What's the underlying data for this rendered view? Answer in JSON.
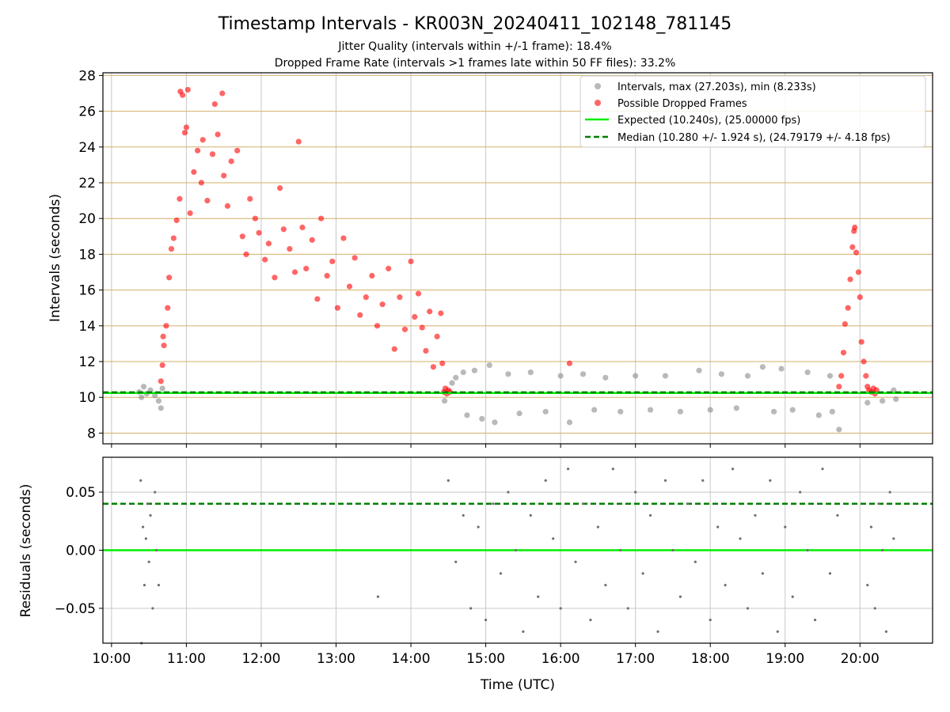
{
  "title": "Timestamp Intervals - KR003N_20240411_102148_781145",
  "subtitle_line1": "Jitter Quality (intervals within +/-1 frame): 18.4%",
  "subtitle_line2": "Dropped Frame Rate (intervals >1 frames late within 50 FF files): 33.2%",
  "colors": {
    "intervals": "#808080",
    "dropped": "#ff0000",
    "expected": "#00ee00",
    "median": "#008000",
    "hgrid_top": "#d2b06a",
    "grid": "#c8c8c8",
    "residual_points": "#707070"
  },
  "chart_data": [
    {
      "type": "scatter",
      "ylabel": "Intervals (seconds)",
      "xlim_hours": [
        9.885,
        20.97
      ],
      "ylim": [
        7.4,
        28.15
      ],
      "yticks": [
        8,
        10,
        12,
        14,
        16,
        18,
        20,
        22,
        24,
        26,
        28
      ],
      "grid": "on",
      "legend_position": "top-right",
      "legend": [
        "Intervals, max (27.203s), min (8.233s)",
        "Possible Dropped Frames",
        "Expected (10.240s), (25.00000 fps)",
        "Median (10.280 +/- 1.924 s), (24.79179 +/- 4.18 fps)"
      ],
      "expected_value": 10.24,
      "median_value": 10.28,
      "series": [
        {
          "name": "Intervals, max (27.203s), min (8.233s)",
          "points": [
            [
              10.37,
              10.3
            ],
            [
              10.4,
              10.0
            ],
            [
              10.43,
              10.6
            ],
            [
              10.47,
              10.2
            ],
            [
              10.52,
              10.4
            ],
            [
              10.58,
              10.1
            ],
            [
              10.63,
              9.8
            ],
            [
              10.66,
              9.4
            ],
            [
              10.68,
              10.5
            ],
            [
              14.45,
              9.8
            ],
            [
              14.55,
              10.8
            ],
            [
              14.6,
              11.1
            ],
            [
              14.7,
              11.4
            ],
            [
              14.75,
              9.0
            ],
            [
              14.85,
              11.5
            ],
            [
              14.95,
              8.8
            ],
            [
              15.05,
              11.8
            ],
            [
              15.12,
              8.6
            ],
            [
              15.3,
              11.3
            ],
            [
              15.45,
              9.1
            ],
            [
              15.6,
              11.4
            ],
            [
              15.8,
              9.2
            ],
            [
              16.0,
              11.2
            ],
            [
              16.12,
              8.6
            ],
            [
              16.3,
              11.3
            ],
            [
              16.45,
              9.3
            ],
            [
              16.6,
              11.1
            ],
            [
              16.8,
              9.2
            ],
            [
              17.0,
              11.2
            ],
            [
              17.2,
              9.3
            ],
            [
              17.4,
              11.2
            ],
            [
              17.6,
              9.2
            ],
            [
              17.85,
              11.5
            ],
            [
              18.0,
              9.3
            ],
            [
              18.15,
              11.3
            ],
            [
              18.35,
              9.4
            ],
            [
              18.5,
              11.2
            ],
            [
              18.7,
              11.7
            ],
            [
              18.85,
              9.2
            ],
            [
              18.95,
              11.6
            ],
            [
              19.1,
              9.3
            ],
            [
              19.3,
              11.4
            ],
            [
              19.45,
              9.0
            ],
            [
              19.6,
              11.2
            ],
            [
              19.63,
              9.2
            ],
            [
              19.72,
              8.2
            ],
            [
              20.1,
              9.7
            ],
            [
              20.3,
              9.8
            ],
            [
              20.45,
              10.4
            ],
            [
              20.48,
              9.9
            ]
          ]
        },
        {
          "name": "Possible Dropped Frames",
          "points": [
            [
              10.66,
              10.9
            ],
            [
              10.68,
              11.8
            ],
            [
              10.69,
              13.4
            ],
            [
              10.7,
              12.9
            ],
            [
              10.73,
              14.0
            ],
            [
              10.75,
              15.0
            ],
            [
              10.77,
              16.7
            ],
            [
              10.8,
              18.3
            ],
            [
              10.83,
              18.9
            ],
            [
              10.87,
              19.9
            ],
            [
              10.91,
              21.1
            ],
            [
              10.92,
              27.1
            ],
            [
              10.95,
              26.9
            ],
            [
              10.98,
              24.8
            ],
            [
              11.02,
              27.2
            ],
            [
              11.0,
              25.1
            ],
            [
              11.05,
              20.3
            ],
            [
              11.1,
              22.6
            ],
            [
              11.15,
              23.8
            ],
            [
              11.2,
              22.0
            ],
            [
              11.22,
              24.4
            ],
            [
              11.28,
              21.0
            ],
            [
              11.35,
              23.6
            ],
            [
              11.38,
              26.4
            ],
            [
              11.42,
              24.7
            ],
            [
              11.48,
              27.0
            ],
            [
              11.5,
              22.4
            ],
            [
              11.55,
              20.7
            ],
            [
              11.6,
              23.2
            ],
            [
              11.68,
              23.8
            ],
            [
              11.75,
              19.0
            ],
            [
              11.8,
              18.0
            ],
            [
              11.85,
              21.1
            ],
            [
              11.92,
              20.0
            ],
            [
              11.97,
              19.2
            ],
            [
              12.05,
              17.7
            ],
            [
              12.1,
              18.6
            ],
            [
              12.18,
              16.7
            ],
            [
              12.25,
              21.7
            ],
            [
              12.3,
              19.4
            ],
            [
              12.38,
              18.3
            ],
            [
              12.45,
              17.0
            ],
            [
              12.5,
              24.3
            ],
            [
              12.55,
              19.5
            ],
            [
              12.6,
              17.2
            ],
            [
              12.68,
              18.8
            ],
            [
              12.75,
              15.5
            ],
            [
              12.8,
              20.0
            ],
            [
              12.88,
              16.8
            ],
            [
              12.95,
              17.6
            ],
            [
              13.02,
              15.0
            ],
            [
              13.1,
              18.9
            ],
            [
              13.18,
              16.2
            ],
            [
              13.25,
              17.8
            ],
            [
              13.32,
              14.6
            ],
            [
              13.4,
              15.6
            ],
            [
              13.48,
              16.8
            ],
            [
              13.55,
              14.0
            ],
            [
              13.62,
              15.2
            ],
            [
              13.7,
              17.2
            ],
            [
              13.78,
              12.7
            ],
            [
              13.85,
              15.6
            ],
            [
              13.92,
              13.8
            ],
            [
              14.0,
              17.6
            ],
            [
              14.05,
              14.5
            ],
            [
              14.1,
              15.8
            ],
            [
              14.15,
              13.9
            ],
            [
              14.2,
              12.6
            ],
            [
              14.25,
              14.8
            ],
            [
              14.3,
              11.7
            ],
            [
              14.35,
              13.4
            ],
            [
              14.4,
              14.7
            ],
            [
              14.42,
              11.9
            ],
            [
              14.44,
              10.3
            ],
            [
              14.46,
              10.5
            ],
            [
              14.48,
              10.2
            ],
            [
              14.5,
              10.4
            ],
            [
              14.52,
              10.3
            ],
            [
              16.12,
              11.9
            ],
            [
              19.72,
              10.6
            ],
            [
              19.75,
              11.2
            ],
            [
              19.78,
              12.5
            ],
            [
              19.8,
              14.1
            ],
            [
              19.84,
              15.0
            ],
            [
              19.87,
              16.6
            ],
            [
              19.9,
              18.4
            ],
            [
              19.92,
              19.3
            ],
            [
              19.93,
              19.5
            ],
            [
              19.95,
              18.1
            ],
            [
              19.98,
              17.0
            ],
            [
              20.0,
              15.6
            ],
            [
              20.02,
              13.1
            ],
            [
              20.05,
              12.0
            ],
            [
              20.08,
              11.2
            ],
            [
              20.1,
              10.6
            ],
            [
              20.12,
              10.4
            ],
            [
              20.15,
              10.3
            ],
            [
              20.18,
              10.5
            ],
            [
              20.2,
              10.2
            ],
            [
              20.22,
              10.4
            ]
          ]
        }
      ]
    },
    {
      "type": "scatter",
      "xlabel": "Time (UTC)",
      "ylabel": "Residuals (seconds)",
      "xlim_hours": [
        9.885,
        20.97
      ],
      "ylim": [
        -0.08,
        0.08
      ],
      "yticks": [
        -0.05,
        0.0,
        0.05
      ],
      "ytick_labels": [
        "−0.05",
        "0.00",
        "0.05"
      ],
      "xticks_hours": [
        10,
        11,
        12,
        13,
        14,
        15,
        16,
        17,
        18,
        19,
        20
      ],
      "xtick_labels": [
        "10:00",
        "11:00",
        "12:00",
        "13:00",
        "14:00",
        "15:00",
        "16:00",
        "17:00",
        "18:00",
        "19:00",
        "20:00"
      ],
      "grid": "on",
      "zero_line": 0.0,
      "median_line": 0.04,
      "series": [
        {
          "name": "",
          "points": [
            [
              10.39,
              0.06
            ],
            [
              10.42,
              0.02
            ],
            [
              10.44,
              -0.03
            ],
            [
              10.46,
              0.01
            ],
            [
              10.48,
              0.04
            ],
            [
              10.5,
              -0.01
            ],
            [
              10.52,
              0.03
            ],
            [
              10.55,
              -0.05
            ],
            [
              10.58,
              0.05
            ],
            [
              10.6,
              0.0
            ],
            [
              10.63,
              -0.03
            ],
            [
              10.4,
              -0.08
            ],
            [
              13.56,
              -0.04
            ],
            [
              14.5,
              0.06
            ],
            [
              14.6,
              -0.01
            ],
            [
              14.7,
              0.03
            ],
            [
              14.8,
              -0.05
            ],
            [
              14.9,
              0.02
            ],
            [
              15.0,
              -0.06
            ],
            [
              15.1,
              0.04
            ],
            [
              15.2,
              -0.02
            ],
            [
              15.3,
              0.05
            ],
            [
              15.4,
              0.0
            ],
            [
              15.5,
              -0.07
            ],
            [
              15.6,
              0.03
            ],
            [
              15.7,
              -0.04
            ],
            [
              15.8,
              0.06
            ],
            [
              15.9,
              0.01
            ],
            [
              16.0,
              -0.05
            ],
            [
              16.1,
              0.07
            ],
            [
              16.2,
              -0.01
            ],
            [
              16.3,
              0.04
            ],
            [
              16.4,
              -0.06
            ],
            [
              16.5,
              0.02
            ],
            [
              16.6,
              -0.03
            ],
            [
              16.7,
              0.07
            ],
            [
              16.8,
              0.0
            ],
            [
              16.9,
              -0.05
            ],
            [
              17.0,
              0.05
            ],
            [
              17.1,
              -0.02
            ],
            [
              17.2,
              0.03
            ],
            [
              17.3,
              -0.07
            ],
            [
              17.4,
              0.06
            ],
            [
              17.5,
              0.0
            ],
            [
              17.6,
              -0.04
            ],
            [
              17.7,
              0.04
            ],
            [
              17.8,
              -0.01
            ],
            [
              17.9,
              0.06
            ],
            [
              18.0,
              -0.06
            ],
            [
              18.1,
              0.02
            ],
            [
              18.2,
              -0.03
            ],
            [
              18.3,
              0.07
            ],
            [
              18.4,
              0.01
            ],
            [
              18.5,
              -0.05
            ],
            [
              18.6,
              0.03
            ],
            [
              18.7,
              -0.02
            ],
            [
              18.8,
              0.06
            ],
            [
              18.9,
              -0.07
            ],
            [
              19.0,
              0.02
            ],
            [
              19.1,
              -0.04
            ],
            [
              19.2,
              0.05
            ],
            [
              19.3,
              0.0
            ],
            [
              19.4,
              -0.06
            ],
            [
              19.5,
              0.07
            ],
            [
              19.6,
              -0.02
            ],
            [
              19.7,
              0.03
            ],
            [
              20.1,
              -0.03
            ],
            [
              20.15,
              0.02
            ],
            [
              20.2,
              -0.05
            ],
            [
              20.25,
              0.04
            ],
            [
              20.3,
              0.0
            ],
            [
              20.35,
              -0.07
            ],
            [
              20.4,
              0.05
            ],
            [
              20.45,
              0.01
            ]
          ]
        }
      ]
    }
  ]
}
